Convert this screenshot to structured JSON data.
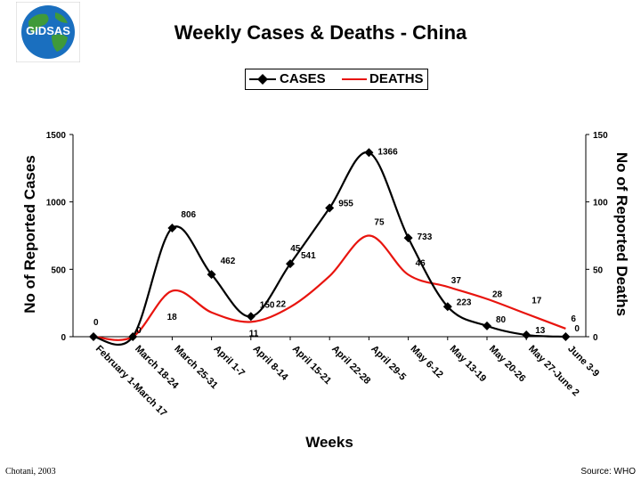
{
  "logo": {
    "text": "GIDSAS"
  },
  "footer": {
    "left": "Chotani, 2003",
    "right": "Source: WHO"
  },
  "colors": {
    "cases": "#000000",
    "deaths": "#e8140e",
    "globe_ocean": "#1a6fbf",
    "globe_land": "#3f9a3a"
  },
  "chart_data": {
    "type": "line",
    "title": "Weekly Cases & Deaths - China",
    "xlabel": "Weeks",
    "ylabel_left": "No of Reported Cases",
    "ylabel_right": "No of Reported Deaths",
    "categories": [
      "February 1-March 17",
      "March 18-24",
      "March 25-31",
      "April 1-7",
      "April 8-14",
      "April 15-21",
      "April 22-28",
      "April 29-5",
      "May 6-12",
      "May 13-19",
      "May 20-26",
      "May 27-June 2",
      "June 3-9"
    ],
    "y_left_ticks": [
      "0",
      "500",
      "1000",
      "1500"
    ],
    "y_right_ticks": [
      "0",
      "50",
      "100",
      "150"
    ],
    "ylim_left": [
      0,
      1500
    ],
    "ylim_right": [
      0,
      150
    ],
    "legend": [
      "CASES",
      "DEATHS"
    ],
    "series": [
      {
        "name": "CASES",
        "axis": "left",
        "marker": "diamond",
        "smooth": true,
        "values": [
          0,
          0,
          806,
          462,
          150,
          541,
          955,
          1366,
          733,
          223,
          80,
          13,
          0
        ],
        "labels": [
          "0",
          "0",
          "806",
          "462",
          "150",
          "541",
          "955",
          "1366",
          "733",
          "223",
          "80",
          "13",
          "0"
        ]
      },
      {
        "name": "DEATHS",
        "axis": "right",
        "marker": "none",
        "smooth": true,
        "values": [
          0,
          0,
          34,
          18,
          11,
          22,
          45,
          75,
          46,
          37,
          28,
          17,
          6
        ],
        "labels": [
          "",
          "",
          "",
          "18",
          "11",
          "22",
          "45",
          "75",
          "46",
          "37",
          "28",
          "17",
          "6"
        ]
      }
    ]
  }
}
